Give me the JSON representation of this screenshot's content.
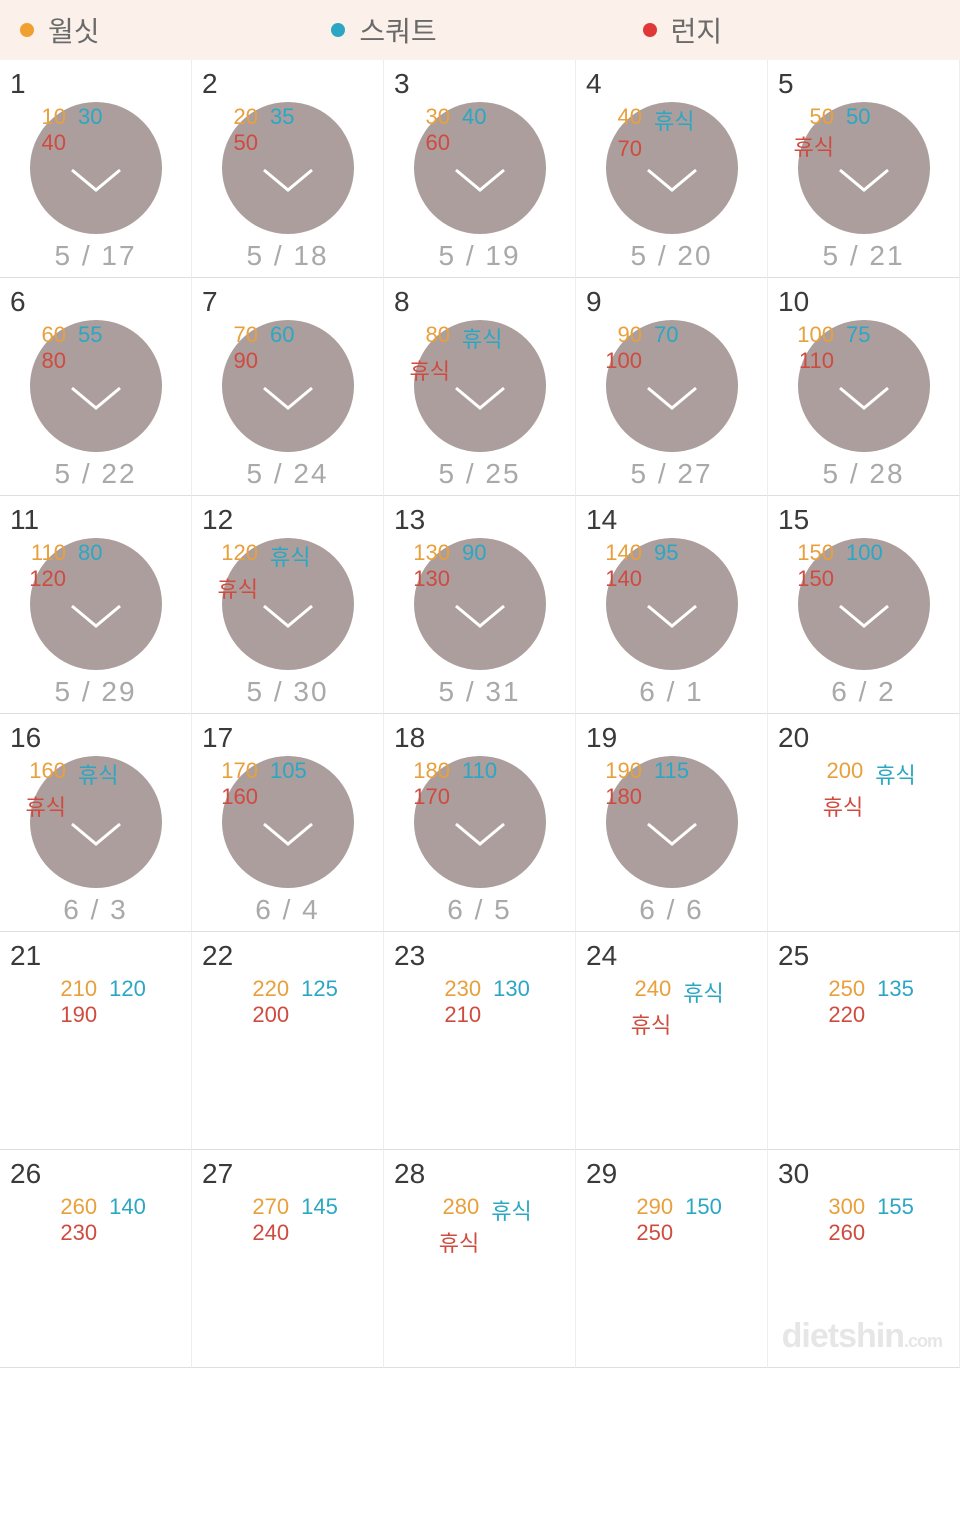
{
  "colors": {
    "wallsit": "#e8a03c",
    "squat": "#2ba7c4",
    "lunge": "#cf4b3f",
    "legend_dot_wallsit": "#f0a030",
    "legend_dot_squat": "#2ba7c4",
    "legend_dot_lunge": "#e03838",
    "legend_bg": "#fbf1ea",
    "circle_bg": "#ab9e9d",
    "date_text": "#a9a9a9",
    "day_text": "#3a3a3a"
  },
  "legend": [
    {
      "key": "wallsit",
      "label": "월싯"
    },
    {
      "key": "squat",
      "label": "스쿼트"
    },
    {
      "key": "lunge",
      "label": "런지"
    }
  ],
  "days": [
    {
      "n": "1",
      "v1": "10",
      "v2": "30",
      "v3": "40",
      "date": "5 / 17",
      "done": true
    },
    {
      "n": "2",
      "v1": "20",
      "v2": "35",
      "v3": "50",
      "date": "5 / 18",
      "done": true
    },
    {
      "n": "3",
      "v1": "30",
      "v2": "40",
      "v3": "60",
      "date": "5 / 19",
      "done": true
    },
    {
      "n": "4",
      "v1": "40",
      "v2": "휴식",
      "v3": "70",
      "date": "5 / 20",
      "done": true
    },
    {
      "n": "5",
      "v1": "50",
      "v2": "50",
      "v3": "휴식",
      "date": "5 / 21",
      "done": true
    },
    {
      "n": "6",
      "v1": "60",
      "v2": "55",
      "v3": "80",
      "date": "5 / 22",
      "done": true
    },
    {
      "n": "7",
      "v1": "70",
      "v2": "60",
      "v3": "90",
      "date": "5 / 24",
      "done": true
    },
    {
      "n": "8",
      "v1": "80",
      "v2": "휴식",
      "v3": "휴식",
      "date": "5 / 25",
      "done": true
    },
    {
      "n": "9",
      "v1": "90",
      "v2": "70",
      "v3": "100",
      "date": "5 / 27",
      "done": true
    },
    {
      "n": "10",
      "v1": "100",
      "v2": "75",
      "v3": "110",
      "date": "5 / 28",
      "done": true
    },
    {
      "n": "11",
      "v1": "110",
      "v2": "80",
      "v3": "120",
      "date": "5 / 29",
      "done": true
    },
    {
      "n": "12",
      "v1": "120",
      "v2": "휴식",
      "v3": "휴식",
      "date": "5 / 30",
      "done": true
    },
    {
      "n": "13",
      "v1": "130",
      "v2": "90",
      "v3": "130",
      "date": "5 / 31",
      "done": true
    },
    {
      "n": "14",
      "v1": "140",
      "v2": "95",
      "v3": "140",
      "date": "6 / 1",
      "done": true
    },
    {
      "n": "15",
      "v1": "150",
      "v2": "100",
      "v3": "150",
      "date": "6 / 2",
      "done": true
    },
    {
      "n": "16",
      "v1": "160",
      "v2": "휴식",
      "v3": "휴식",
      "date": "6 / 3",
      "done": true
    },
    {
      "n": "17",
      "v1": "170",
      "v2": "105",
      "v3": "160",
      "date": "6 / 4",
      "done": true
    },
    {
      "n": "18",
      "v1": "180",
      "v2": "110",
      "v3": "170",
      "date": "6 / 5",
      "done": true
    },
    {
      "n": "19",
      "v1": "190",
      "v2": "115",
      "v3": "180",
      "date": "6 / 6",
      "done": true
    },
    {
      "n": "20",
      "v1": "200",
      "v2": "휴식",
      "v3": "휴식",
      "date": "",
      "done": false
    },
    {
      "n": "21",
      "v1": "210",
      "v2": "120",
      "v3": "190",
      "date": "",
      "done": false
    },
    {
      "n": "22",
      "v1": "220",
      "v2": "125",
      "v3": "200",
      "date": "",
      "done": false
    },
    {
      "n": "23",
      "v1": "230",
      "v2": "130",
      "v3": "210",
      "date": "",
      "done": false
    },
    {
      "n": "24",
      "v1": "240",
      "v2": "휴식",
      "v3": "휴식",
      "date": "",
      "done": false
    },
    {
      "n": "25",
      "v1": "250",
      "v2": "135",
      "v3": "220",
      "date": "",
      "done": false
    },
    {
      "n": "26",
      "v1": "260",
      "v2": "140",
      "v3": "230",
      "date": "",
      "done": false
    },
    {
      "n": "27",
      "v1": "270",
      "v2": "145",
      "v3": "240",
      "date": "",
      "done": false
    },
    {
      "n": "28",
      "v1": "280",
      "v2": "휴식",
      "v3": "휴식",
      "date": "",
      "done": false
    },
    {
      "n": "29",
      "v1": "290",
      "v2": "150",
      "v3": "250",
      "date": "",
      "done": false
    },
    {
      "n": "30",
      "v1": "300",
      "v2": "155",
      "v3": "260",
      "date": "",
      "done": false
    }
  ],
  "watermark": "dietshin",
  "watermark_suffix": ".com"
}
